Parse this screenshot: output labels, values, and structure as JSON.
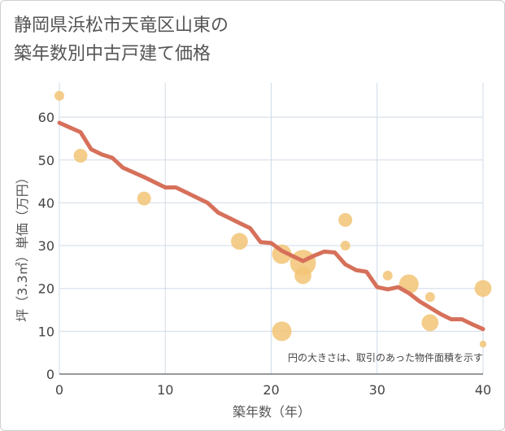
{
  "title_line1": "静岡県浜松市天竜区山東の",
  "title_line2": "築年数別中古戸建て価格",
  "chart_data": {
    "type": "scatter",
    "xlabel": "築年数（年）",
    "ylabel": "坪（3.3㎡）単価（万円）",
    "xlim": [
      0,
      40
    ],
    "ylim": [
      0,
      68
    ],
    "xticks": [
      0,
      10,
      20,
      30,
      40
    ],
    "yticks": [
      0,
      10,
      20,
      30,
      40,
      50,
      60
    ],
    "grid": true,
    "annotation": "円の大きさは、取引のあった物件面積を示す",
    "colors": {
      "points": "#f2c475",
      "trend": "#d6705a",
      "grid": "#cfdbe8"
    },
    "points": [
      {
        "x": 0,
        "y": 65,
        "size": 1
      },
      {
        "x": 2,
        "y": 51,
        "size": 2
      },
      {
        "x": 8,
        "y": 41,
        "size": 2
      },
      {
        "x": 17,
        "y": 31,
        "size": 3
      },
      {
        "x": 21,
        "y": 28,
        "size": 4
      },
      {
        "x": 21,
        "y": 10,
        "size": 4
      },
      {
        "x": 23,
        "y": 23,
        "size": 3
      },
      {
        "x": 23,
        "y": 26,
        "size": 7
      },
      {
        "x": 27,
        "y": 36,
        "size": 2
      },
      {
        "x": 27,
        "y": 30,
        "size": 1
      },
      {
        "x": 31,
        "y": 23,
        "size": 1
      },
      {
        "x": 33,
        "y": 21,
        "size": 4
      },
      {
        "x": 35,
        "y": 18,
        "size": 1
      },
      {
        "x": 35,
        "y": 12,
        "size": 3
      },
      {
        "x": 40,
        "y": 20,
        "size": 3
      },
      {
        "x": 40,
        "y": 7,
        "size": 0.5
      }
    ],
    "trend": {
      "x": [
        0,
        1,
        2,
        3,
        4,
        5,
        6,
        7,
        8,
        9,
        10,
        11,
        12,
        13,
        14,
        15,
        16,
        17,
        18,
        19,
        20,
        21,
        22,
        23,
        24,
        25,
        26,
        27,
        28,
        29,
        30,
        31,
        32,
        33,
        34,
        35,
        36,
        37,
        38,
        39,
        40
      ],
      "y": [
        58.7,
        57.6,
        56.5,
        52.5,
        51.3,
        50.5,
        48.2,
        47.1,
        46.0,
        44.8,
        43.6,
        43.6,
        42.4,
        41.2,
        40.0,
        37.7,
        36.5,
        35.3,
        34.1,
        30.8,
        30.6,
        28.8,
        27.6,
        26.4,
        27.6,
        28.6,
        28.4,
        25.6,
        24.3,
        23.9,
        20.3,
        19.8,
        20.3,
        18.9,
        17.0,
        15.5,
        14.0,
        12.8,
        12.8,
        11.6,
        10.5
      ]
    }
  }
}
